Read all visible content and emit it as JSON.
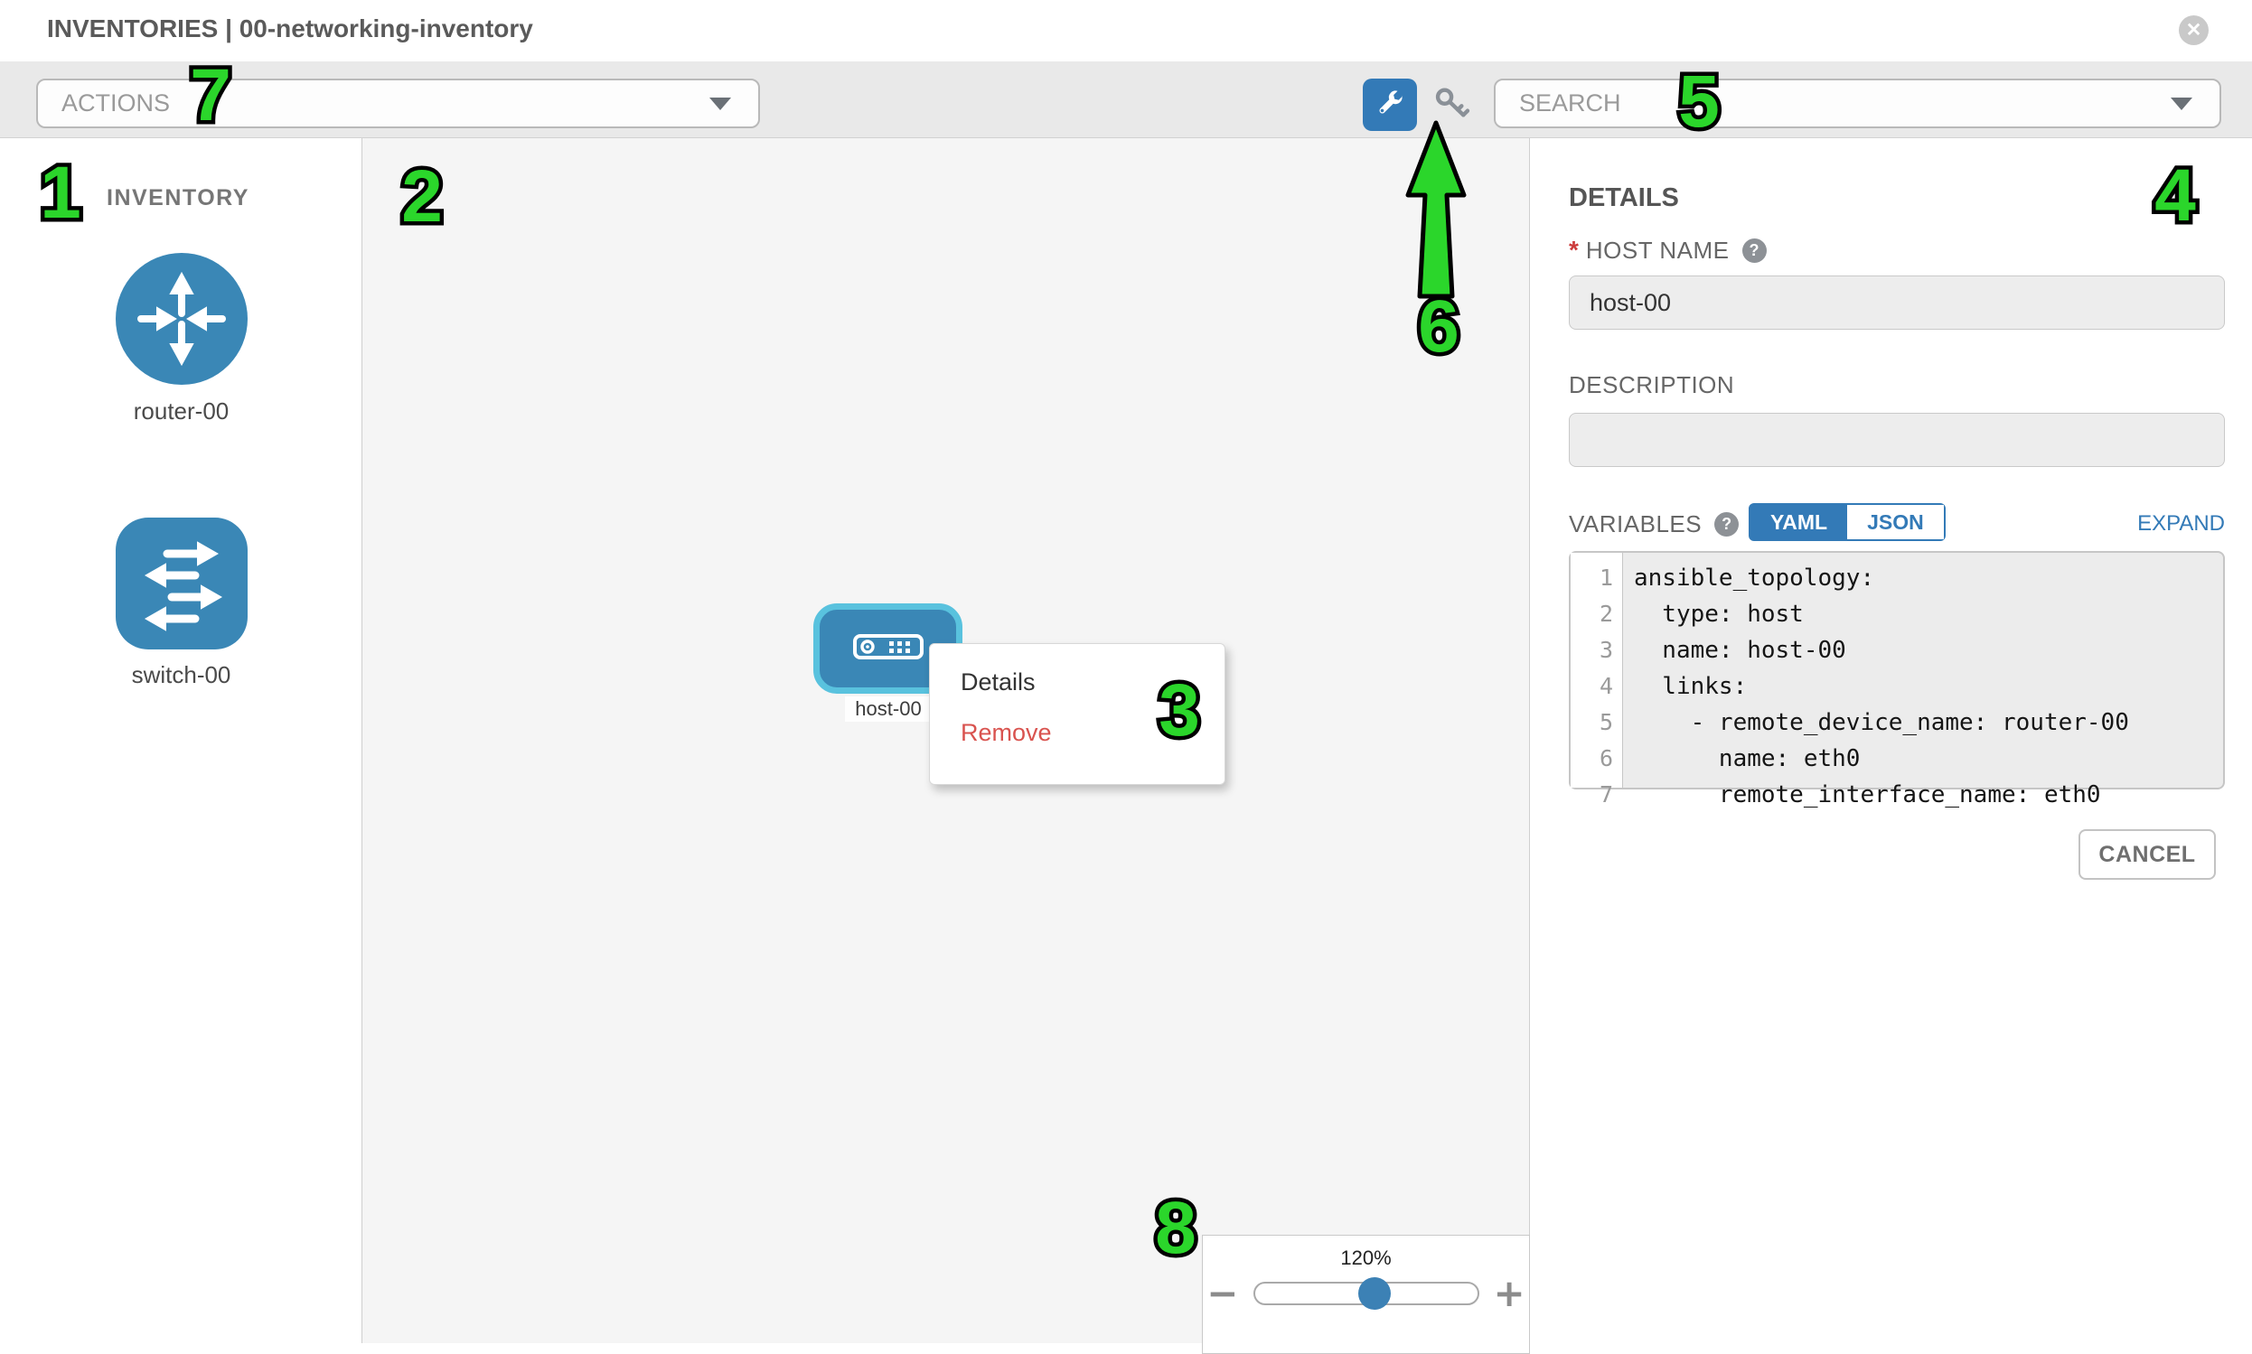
{
  "header": {
    "title": "INVENTORIES | 00-networking-inventory",
    "close_icon": "circle-x"
  },
  "toolbar": {
    "actions_label": "ACTIONS",
    "search_label": "SEARCH",
    "wrench_icon": "wrench",
    "key_icon": "key"
  },
  "sidebar": {
    "title": "INVENTORY",
    "devices": [
      {
        "type": "router",
        "label": "router-00",
        "icon": "router-arrows-icon"
      },
      {
        "type": "switch",
        "label": "switch-00",
        "icon": "switch-arrows-icon"
      }
    ]
  },
  "canvas": {
    "node": {
      "type": "host",
      "label": "host-00",
      "selected": true,
      "icon": "server-icon"
    },
    "context_menu": {
      "items": [
        {
          "label": "Details"
        },
        {
          "label": "Remove"
        }
      ]
    },
    "zoom_control": {
      "level": "120%",
      "minus": "−",
      "plus": "+"
    }
  },
  "details_panel": {
    "title": "DETAILS",
    "host_name": {
      "label": "HOST NAME",
      "required_marker": "*",
      "value": "host-00",
      "help_icon": "?"
    },
    "description": {
      "label": "DESCRIPTION",
      "value": ""
    },
    "variables": {
      "label": "VARIABLES",
      "help_icon": "?",
      "tabs": [
        {
          "label": "YAML",
          "active": true
        },
        {
          "label": "JSON",
          "active": false
        }
      ],
      "expand_label": "EXPAND",
      "code_lines": [
        {
          "num": 1,
          "text": "ansible_topology:"
        },
        {
          "num": 2,
          "text": "  type: host"
        },
        {
          "num": 3,
          "text": "  name: host-00"
        },
        {
          "num": 4,
          "text": "  links:"
        },
        {
          "num": 5,
          "text": "    - remote_device_name: router-00"
        },
        {
          "num": 6,
          "text": "      name: eth0"
        },
        {
          "num": 7,
          "text": "      remote_interface_name: eth0"
        }
      ]
    },
    "cancel_label": "CANCEL"
  },
  "annotations": {
    "numbers": [
      "1",
      "2",
      "3",
      "4",
      "5",
      "6",
      "7",
      "8"
    ],
    "arrow": "green-up-arrow-to-key-icon"
  },
  "colors": {
    "accent_blue": "#337ab7",
    "node_fill": "#3a87b6",
    "selection_cyan": "#59c2de",
    "remove_red": "#d9534f",
    "annotation_green": "#2bd62b",
    "toolbar_gray": "#e9e9e9",
    "canvas_gray": "#f5f5f5"
  }
}
